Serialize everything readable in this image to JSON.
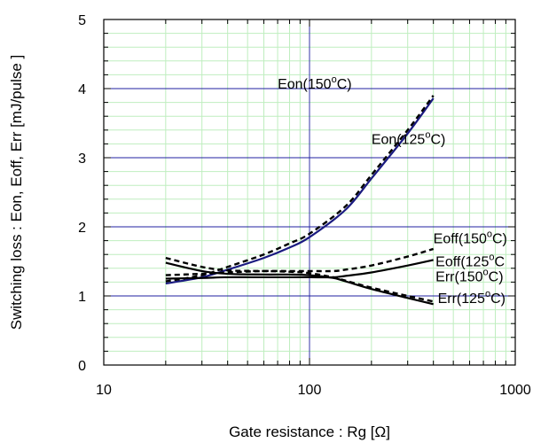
{
  "chart_data": {
    "type": "line",
    "title": "",
    "xlabel": "Gate resistance : Rg [Ω]",
    "ylabel": "Switching loss : Eon, Eoff, Err  [mJ/pulse ]",
    "xscale": "log",
    "xlim": [
      10,
      1000
    ],
    "ylim": [
      0,
      5
    ],
    "x_ticks": [
      {
        "value": 10,
        "label": "10"
      },
      {
        "value": 100,
        "label": "100"
      },
      {
        "value": 1000,
        "label": "1000"
      }
    ],
    "y_ticks": [
      {
        "value": 0,
        "label": "0"
      },
      {
        "value": 1,
        "label": "1"
      },
      {
        "value": 2,
        "label": "2"
      },
      {
        "value": 3,
        "label": "3"
      },
      {
        "value": 4,
        "label": "4"
      },
      {
        "value": 5,
        "label": "5"
      }
    ],
    "grid": true,
    "series": [
      {
        "name": "Eon(150°C)",
        "style": "solid",
        "color": "#1a1a80",
        "x": [
          20,
          30,
          40,
          60,
          80,
          100,
          150,
          200,
          300,
          400
        ],
        "y": [
          1.18,
          1.27,
          1.38,
          1.55,
          1.7,
          1.85,
          2.25,
          2.7,
          3.35,
          3.86
        ]
      },
      {
        "name": "Eon(125°C)",
        "style": "dashed",
        "color": "#000000",
        "x": [
          20,
          30,
          40,
          60,
          80,
          100,
          150,
          200,
          300,
          400
        ],
        "y": [
          1.21,
          1.3,
          1.42,
          1.6,
          1.76,
          1.9,
          2.3,
          2.75,
          3.4,
          3.9
        ]
      },
      {
        "name": "Eoff(150°C)",
        "style": "dashed",
        "color": "#000000",
        "x": [
          20,
          30,
          40,
          60,
          80,
          100,
          130,
          150,
          200,
          300,
          400
        ],
        "y": [
          1.3,
          1.32,
          1.34,
          1.36,
          1.36,
          1.36,
          1.36,
          1.38,
          1.44,
          1.57,
          1.68
        ]
      },
      {
        "name": "Eoff(125°C",
        "style": "solid",
        "color": "#000000",
        "x": [
          20,
          30,
          40,
          60,
          80,
          100,
          130,
          150,
          200,
          300,
          400
        ],
        "y": [
          1.25,
          1.26,
          1.27,
          1.27,
          1.27,
          1.27,
          1.27,
          1.29,
          1.34,
          1.44,
          1.52
        ]
      },
      {
        "name": "Err(150°C)",
        "style": "dashed",
        "color": "#000000",
        "x": [
          20,
          30,
          40,
          60,
          80,
          100,
          130,
          150,
          200,
          300,
          400
        ],
        "y": [
          1.55,
          1.42,
          1.37,
          1.36,
          1.35,
          1.33,
          1.27,
          1.22,
          1.12,
          1.0,
          0.92
        ]
      },
      {
        "name": "Err(125°C)",
        "style": "solid",
        "color": "#000000",
        "x": [
          20,
          30,
          40,
          60,
          80,
          100,
          130,
          150,
          200,
          300,
          400
        ],
        "y": [
          1.48,
          1.36,
          1.32,
          1.31,
          1.31,
          1.3,
          1.26,
          1.21,
          1.1,
          0.97,
          0.88
        ]
      }
    ],
    "annotations": [
      {
        "text": "Eon(150",
        "sup": "o",
        "tail": "C)",
        "x": 70,
        "y": 4.0
      },
      {
        "text": "Eon(125",
        "sup": "o",
        "tail": "C)",
        "x": 200,
        "y": 3.2
      },
      {
        "text": "Eoff(150",
        "sup": "o",
        "tail": "C)",
        "x": 400,
        "y": 1.76
      },
      {
        "text": "Eoff(125",
        "sup": "o",
        "tail": "C",
        "x": 410,
        "y": 1.43
      },
      {
        "text": "Err(150",
        "sup": "o",
        "tail": "C)",
        "x": 410,
        "y": 1.21
      },
      {
        "text": "Err(125",
        "sup": "o",
        "tail": "C)",
        "x": 420,
        "y": 0.9
      }
    ]
  }
}
